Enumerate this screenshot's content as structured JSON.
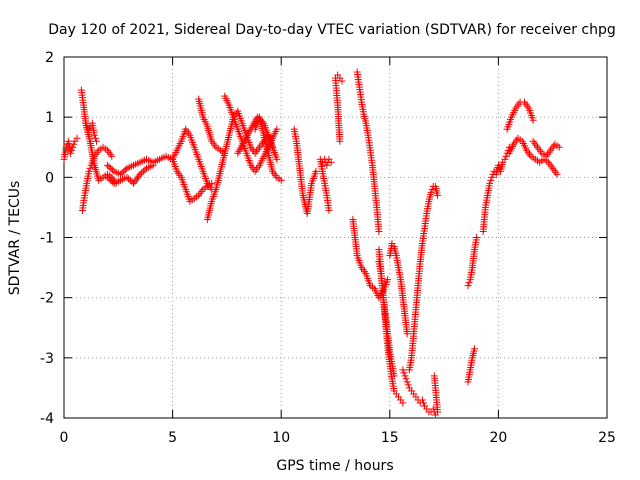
{
  "chart_data": {
    "type": "scatter",
    "title": "Day 120 of 2021, Sidereal Day-to-day VTEC variation (SDTVAR) for receiver chpg",
    "xlabel": "GPS time / hours",
    "ylabel": "SDTVAR / TECUs",
    "xlim": [
      0,
      25
    ],
    "ylim": [
      -4,
      2
    ],
    "xticks": [
      0,
      5,
      10,
      15,
      20,
      25
    ],
    "yticks": [
      -4,
      -3,
      -2,
      -1,
      0,
      1,
      2
    ],
    "grid": true,
    "marker": "+",
    "color": "#ff0000",
    "series": [
      {
        "name": "SDTVAR",
        "segments": [
          {
            "x": [
              0.0,
              0.1,
              0.2,
              0.3,
              0.4,
              0.5,
              0.6
            ],
            "y": [
              0.3,
              0.5,
              0.6,
              0.4,
              0.5,
              0.6,
              0.65
            ]
          },
          {
            "x": [
              0.8,
              0.9,
              1.0,
              1.1,
              1.2,
              1.3,
              1.4,
              1.5
            ],
            "y": [
              1.45,
              1.2,
              0.9,
              0.75,
              0.85,
              0.9,
              0.7,
              0.6
            ]
          },
          {
            "x": [
              0.85,
              0.95,
              1.05,
              1.15,
              1.25,
              1.4,
              1.6,
              1.8,
              2.0,
              2.2
            ],
            "y": [
              -0.55,
              -0.3,
              -0.1,
              0.1,
              0.2,
              0.35,
              0.45,
              0.5,
              0.45,
              0.35
            ]
          },
          {
            "x": [
              1.0,
              1.2,
              1.4,
              1.6,
              1.8,
              2.0,
              2.2,
              2.4
            ],
            "y": [
              0.9,
              0.6,
              0.2,
              -0.05,
              0.0,
              0.05,
              0.0,
              -0.1
            ]
          },
          {
            "x": [
              2.0,
              2.3,
              2.6,
              2.9,
              3.2,
              3.5,
              3.8,
              4.1,
              4.4,
              4.7,
              5.0
            ],
            "y": [
              0.2,
              0.1,
              0.05,
              0.15,
              0.2,
              0.25,
              0.3,
              0.25,
              0.3,
              0.35,
              0.3
            ]
          },
          {
            "x": [
              2.0,
              2.3,
              2.6,
              2.9,
              3.2,
              3.5,
              3.8,
              4.1
            ],
            "y": [
              0.0,
              -0.1,
              -0.05,
              0.0,
              -0.1,
              0.05,
              0.15,
              0.2
            ]
          },
          {
            "x": [
              5.0,
              5.2,
              5.4,
              5.6,
              5.8,
              6.0,
              6.2,
              6.4,
              6.6,
              6.8
            ],
            "y": [
              0.3,
              0.45,
              0.6,
              0.8,
              0.7,
              0.5,
              0.3,
              0.1,
              -0.1,
              -0.2
            ]
          },
          {
            "x": [
              5.0,
              5.2,
              5.4,
              5.6,
              5.8,
              6.0,
              6.2,
              6.4,
              6.6,
              6.8
            ],
            "y": [
              0.3,
              0.1,
              0.0,
              -0.2,
              -0.4,
              -0.35,
              -0.3,
              -0.2,
              -0.15,
              -0.1
            ]
          },
          {
            "x": [
              6.2,
              6.4,
              6.6,
              6.8,
              7.0,
              7.2,
              7.4
            ],
            "y": [
              1.3,
              1.0,
              0.85,
              0.6,
              0.5,
              0.45,
              0.4
            ]
          },
          {
            "x": [
              6.6,
              6.8,
              7.0,
              7.2,
              7.4,
              7.6,
              7.8,
              8.0,
              8.2,
              8.4,
              8.6,
              8.8,
              9.0,
              9.2,
              9.4,
              9.6
            ],
            "y": [
              -0.7,
              -0.4,
              -0.2,
              0.1,
              0.4,
              0.7,
              1.0,
              1.1,
              0.9,
              0.7,
              0.5,
              0.4,
              0.5,
              0.6,
              0.7,
              0.5
            ]
          },
          {
            "x": [
              7.4,
              7.6,
              7.8,
              8.0,
              8.2,
              8.4,
              8.6,
              8.8,
              9.0,
              9.2,
              9.4,
              9.6,
              9.8
            ],
            "y": [
              1.35,
              1.2,
              1.0,
              0.8,
              0.6,
              0.4,
              0.2,
              0.1,
              0.2,
              0.35,
              0.5,
              0.65,
              0.8
            ]
          },
          {
            "x": [
              8.0,
              8.3,
              8.6,
              8.9,
              9.2,
              9.5,
              9.8
            ],
            "y": [
              0.4,
              0.6,
              0.8,
              1.0,
              0.9,
              0.6,
              0.3
            ]
          },
          {
            "x": [
              8.8,
              9.0,
              9.2,
              9.4,
              9.6,
              9.8,
              10.0
            ],
            "y": [
              0.8,
              1.0,
              0.7,
              0.4,
              0.1,
              0.0,
              -0.05
            ]
          },
          {
            "x": [
              10.6,
              10.7,
              10.8,
              10.9,
              11.0,
              11.2,
              11.4,
              11.6
            ],
            "y": [
              0.8,
              0.6,
              0.3,
              0.0,
              -0.3,
              -0.6,
              -0.1,
              0.1
            ]
          },
          {
            "x": [
              11.8,
              11.9,
              12.0,
              12.1,
              12.2
            ],
            "y": [
              0.3,
              0.1,
              -0.1,
              -0.3,
              -0.55
            ]
          },
          {
            "x": [
              11.9,
              12.0,
              12.1,
              12.2,
              12.3
            ],
            "y": [
              0.25,
              0.3,
              0.2,
              0.3,
              0.25
            ]
          },
          {
            "x": [
              12.5,
              12.55,
              12.6,
              12.65,
              12.7
            ],
            "y": [
              1.65,
              1.4,
              1.2,
              0.9,
              0.6
            ]
          },
          {
            "x": [
              12.6,
              12.7,
              12.8
            ],
            "y": [
              1.7,
              1.65,
              1.6
            ]
          },
          {
            "x": [
              13.5,
              13.6,
              13.7,
              13.8,
              13.9,
              14.0,
              14.1,
              14.2,
              14.3,
              14.4,
              14.5
            ],
            "y": [
              1.75,
              1.5,
              1.25,
              1.05,
              0.9,
              0.7,
              0.45,
              0.2,
              -0.15,
              -0.5,
              -0.9
            ]
          },
          {
            "x": [
              14.5,
              14.6,
              14.7,
              14.8,
              14.9,
              15.0,
              15.1,
              15.2,
              15.3,
              15.4,
              15.5,
              15.6
            ],
            "y": [
              -1.2,
              -1.6,
              -2.0,
              -2.4,
              -2.8,
              -3.1,
              -3.35,
              -3.55,
              -3.6,
              -3.65,
              -3.7,
              -3.75
            ]
          },
          {
            "x": [
              13.3,
              13.5,
              13.7,
              13.9,
              14.1,
              14.3,
              14.5,
              14.7,
              14.9
            ],
            "y": [
              -0.7,
              -1.3,
              -1.5,
              -1.6,
              -1.8,
              -1.85,
              -2.0,
              -1.9,
              -1.7
            ]
          },
          {
            "x": [
              14.5,
              14.6,
              14.7,
              14.8,
              14.9,
              15.0,
              15.1,
              15.2
            ],
            "y": [
              -1.4,
              -1.6,
              -2.0,
              -2.3,
              -2.6,
              -2.9,
              -3.1,
              -3.3
            ]
          },
          {
            "x": [
              15.0,
              15.1,
              15.2,
              15.3,
              15.4,
              15.5,
              15.6,
              15.7,
              15.8
            ],
            "y": [
              -1.3,
              -1.1,
              -1.15,
              -1.3,
              -1.5,
              -1.7,
              -2.0,
              -2.3,
              -2.6
            ]
          },
          {
            "x": [
              15.6,
              15.7,
              15.8,
              15.9,
              16.0,
              16.1,
              16.2,
              16.3,
              16.4,
              16.5,
              16.6
            ],
            "y": [
              -3.2,
              -3.3,
              -3.4,
              -3.5,
              -3.55,
              -3.6,
              -3.65,
              -3.7,
              -3.75,
              -3.7,
              -3.8
            ]
          },
          {
            "x": [
              15.9,
              16.0,
              16.1,
              16.2,
              16.3,
              16.4,
              16.5,
              16.6,
              16.7,
              16.8,
              16.9,
              17.0,
              17.1,
              17.2
            ],
            "y": [
              -3.2,
              -3.0,
              -2.6,
              -2.2,
              -1.8,
              -1.4,
              -1.1,
              -0.85,
              -0.6,
              -0.4,
              -0.25,
              -0.15,
              -0.15,
              -0.3
            ]
          },
          {
            "x": [
              16.6,
              16.7,
              16.8,
              16.9,
              17.0,
              17.1
            ],
            "y": [
              -3.8,
              -3.85,
              -3.9,
              -3.9,
              -3.85,
              -3.95
            ]
          },
          {
            "x": [
              17.05,
              17.1,
              17.15,
              17.2
            ],
            "y": [
              -3.3,
              -3.5,
              -3.7,
              -3.9
            ]
          },
          {
            "x": [
              18.6,
              18.7,
              18.8,
              18.9,
              19.0
            ],
            "y": [
              -1.8,
              -1.7,
              -1.5,
              -1.2,
              -1.0
            ]
          },
          {
            "x": [
              18.6,
              18.7,
              18.8,
              18.9
            ],
            "y": [
              -3.4,
              -3.2,
              -3.0,
              -2.85
            ]
          },
          {
            "x": [
              19.3,
              19.4,
              19.5,
              19.6,
              19.7,
              19.8,
              19.9,
              20.0,
              20.1,
              20.2,
              20.3,
              20.4,
              20.5
            ],
            "y": [
              -0.9,
              -0.5,
              -0.3,
              -0.1,
              0.0,
              0.1,
              0.05,
              0.2,
              0.1,
              0.25,
              0.3,
              0.4,
              0.5
            ]
          },
          {
            "x": [
              20.4,
              20.6,
              20.8,
              21.0,
              21.2,
              21.4,
              21.6
            ],
            "y": [
              0.8,
              1.0,
              1.15,
              1.25,
              1.25,
              1.15,
              0.95
            ]
          },
          {
            "x": [
              20.5,
              20.7,
              20.9,
              21.1,
              21.3,
              21.5,
              21.7,
              21.9,
              22.1,
              22.3,
              22.5,
              22.7
            ],
            "y": [
              0.4,
              0.55,
              0.65,
              0.6,
              0.45,
              0.35,
              0.3,
              0.25,
              0.3,
              0.25,
              0.15,
              0.05
            ]
          },
          {
            "x": [
              21.6,
              21.8,
              22.0,
              22.2,
              22.4,
              22.6,
              22.8
            ],
            "y": [
              0.6,
              0.5,
              0.4,
              0.35,
              0.45,
              0.55,
              0.5
            ]
          }
        ]
      }
    ]
  }
}
